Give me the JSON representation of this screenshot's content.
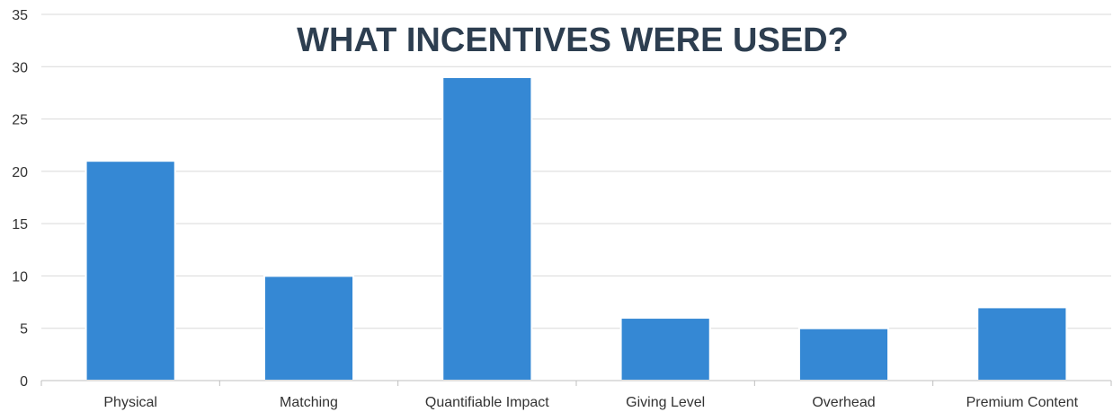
{
  "chart_data": {
    "type": "bar",
    "title": "WHAT INCENTIVES WERE USED?",
    "xlabel": "",
    "ylabel": "",
    "categories": [
      "Physical",
      "Matching",
      "Quantifiable Impact",
      "Giving Level",
      "Overhead",
      "Premium Content"
    ],
    "values": [
      21,
      10,
      29,
      6,
      5,
      7
    ],
    "ylim": [
      0,
      35
    ],
    "yticks": [
      "0",
      "5",
      "10",
      "15",
      "20",
      "25",
      "30",
      "35"
    ],
    "grid": true,
    "legend": "none",
    "colors": {
      "bar": "#3588d4",
      "bar_edge": "#ffffff",
      "grid": "#d9d9d9",
      "axis": "#bfbfbf",
      "title": "#2d3e50"
    }
  }
}
